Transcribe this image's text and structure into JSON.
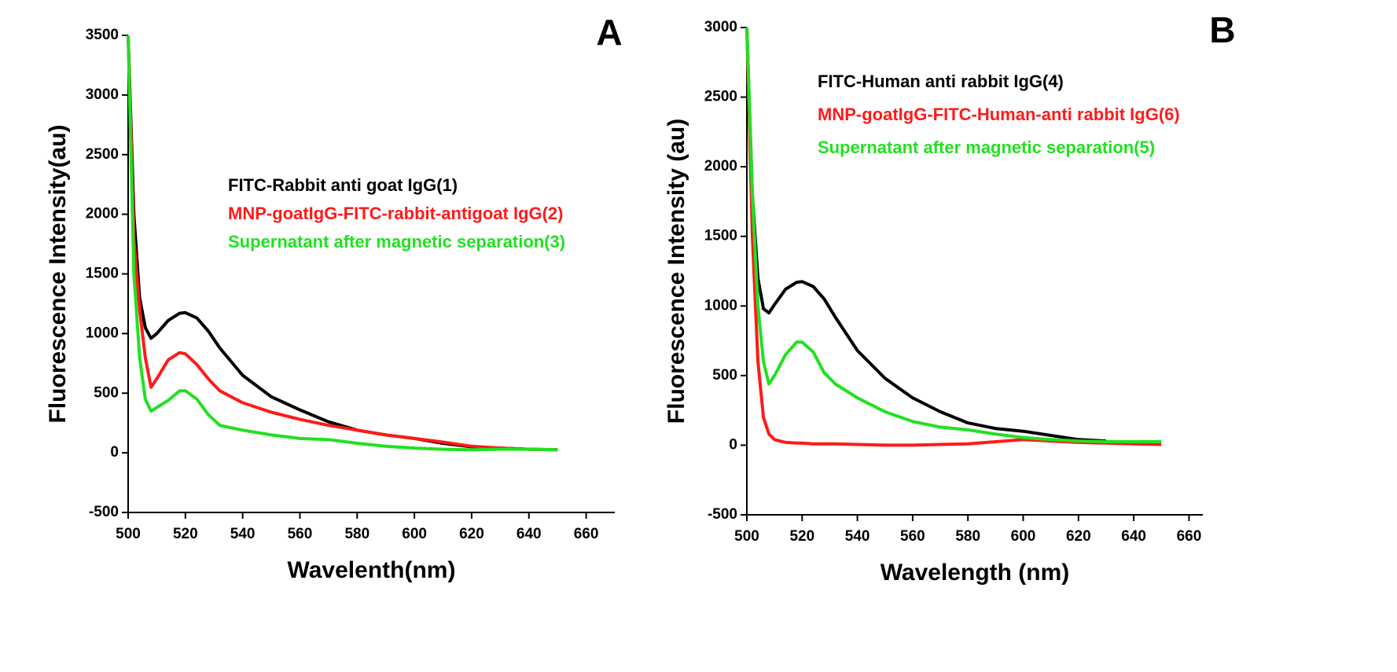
{
  "chart_data": [
    {
      "type": "line",
      "panel_label": "A",
      "xlabel": "Wavelenth(nm)",
      "ylabel": "Fluorescence Intensity(au)",
      "xlim": [
        500,
        670
      ],
      "xticks": [
        500,
        520,
        540,
        560,
        580,
        600,
        620,
        640,
        660
      ],
      "ylim": [
        -500,
        3500
      ],
      "yticks": [
        -500,
        0,
        500,
        1000,
        1500,
        2000,
        2500,
        3000,
        3500
      ],
      "x": [
        500,
        502,
        504,
        506,
        508,
        510,
        514,
        518,
        520,
        524,
        528,
        532,
        540,
        550,
        560,
        570,
        580,
        590,
        600,
        610,
        620,
        630,
        640,
        650
      ],
      "series": [
        {
          "name": "FITC-Rabbit anti goat IgG(1)",
          "color": "#000000",
          "values": [
            3500,
            2000,
            1300,
            1050,
            960,
            1000,
            1110,
            1170,
            1175,
            1130,
            1020,
            880,
            650,
            470,
            360,
            260,
            190,
            150,
            120,
            80,
            50,
            40,
            30,
            25
          ]
        },
        {
          "name": "MNP-goatIgG-FITC-rabbit-antigoat IgG(2)",
          "color": "#ff1a1a",
          "values": [
            3500,
            1800,
            1200,
            800,
            550,
            620,
            780,
            840,
            830,
            740,
            620,
            520,
            420,
            340,
            280,
            230,
            190,
            150,
            120,
            90,
            55,
            40,
            30,
            25
          ]
        },
        {
          "name": "Supernatant after magnetic separation(3)",
          "color": "#22e022",
          "values": [
            3500,
            1500,
            800,
            450,
            350,
            380,
            440,
            520,
            520,
            450,
            320,
            230,
            190,
            150,
            120,
            110,
            80,
            55,
            40,
            30,
            25,
            30,
            30,
            25
          ]
        }
      ]
    },
    {
      "type": "line",
      "panel_label": "B",
      "xlabel": "Wavelength (nm)",
      "ylabel": "Fluorescence Intensity (au)",
      "xlim": [
        500,
        665
      ],
      "xticks": [
        500,
        520,
        540,
        560,
        580,
        600,
        620,
        640,
        660
      ],
      "ylim": [
        -500,
        3000
      ],
      "yticks": [
        -500,
        0,
        500,
        1000,
        1500,
        2000,
        2500,
        3000
      ],
      "x": [
        500,
        502,
        504,
        506,
        508,
        510,
        514,
        518,
        520,
        524,
        528,
        532,
        540,
        550,
        560,
        570,
        580,
        590,
        600,
        610,
        620,
        630,
        640,
        650
      ],
      "series": [
        {
          "name": "FITC-Human anti rabbit IgG(4)",
          "color": "#000000",
          "values": [
            3000,
            1800,
            1200,
            980,
            950,
            1010,
            1120,
            1170,
            1175,
            1140,
            1050,
            920,
            680,
            480,
            340,
            240,
            160,
            120,
            100,
            70,
            40,
            30,
            null,
            null
          ]
        },
        {
          "name": "MNP-goatIgG-FITC-Human-anti rabbit IgG(6)",
          "color": "#ff1a1a",
          "values": [
            3000,
            1500,
            600,
            200,
            80,
            40,
            20,
            15,
            15,
            10,
            10,
            10,
            5,
            0,
            0,
            5,
            10,
            25,
            40,
            30,
            20,
            15,
            10,
            5
          ]
        },
        {
          "name": "Supernatant after magnetic separation(5)",
          "color": "#22e022",
          "values": [
            3000,
            1800,
            1000,
            600,
            440,
            500,
            650,
            740,
            740,
            670,
            520,
            440,
            340,
            240,
            170,
            130,
            110,
            80,
            55,
            40,
            30,
            25,
            25,
            25
          ]
        }
      ]
    }
  ]
}
